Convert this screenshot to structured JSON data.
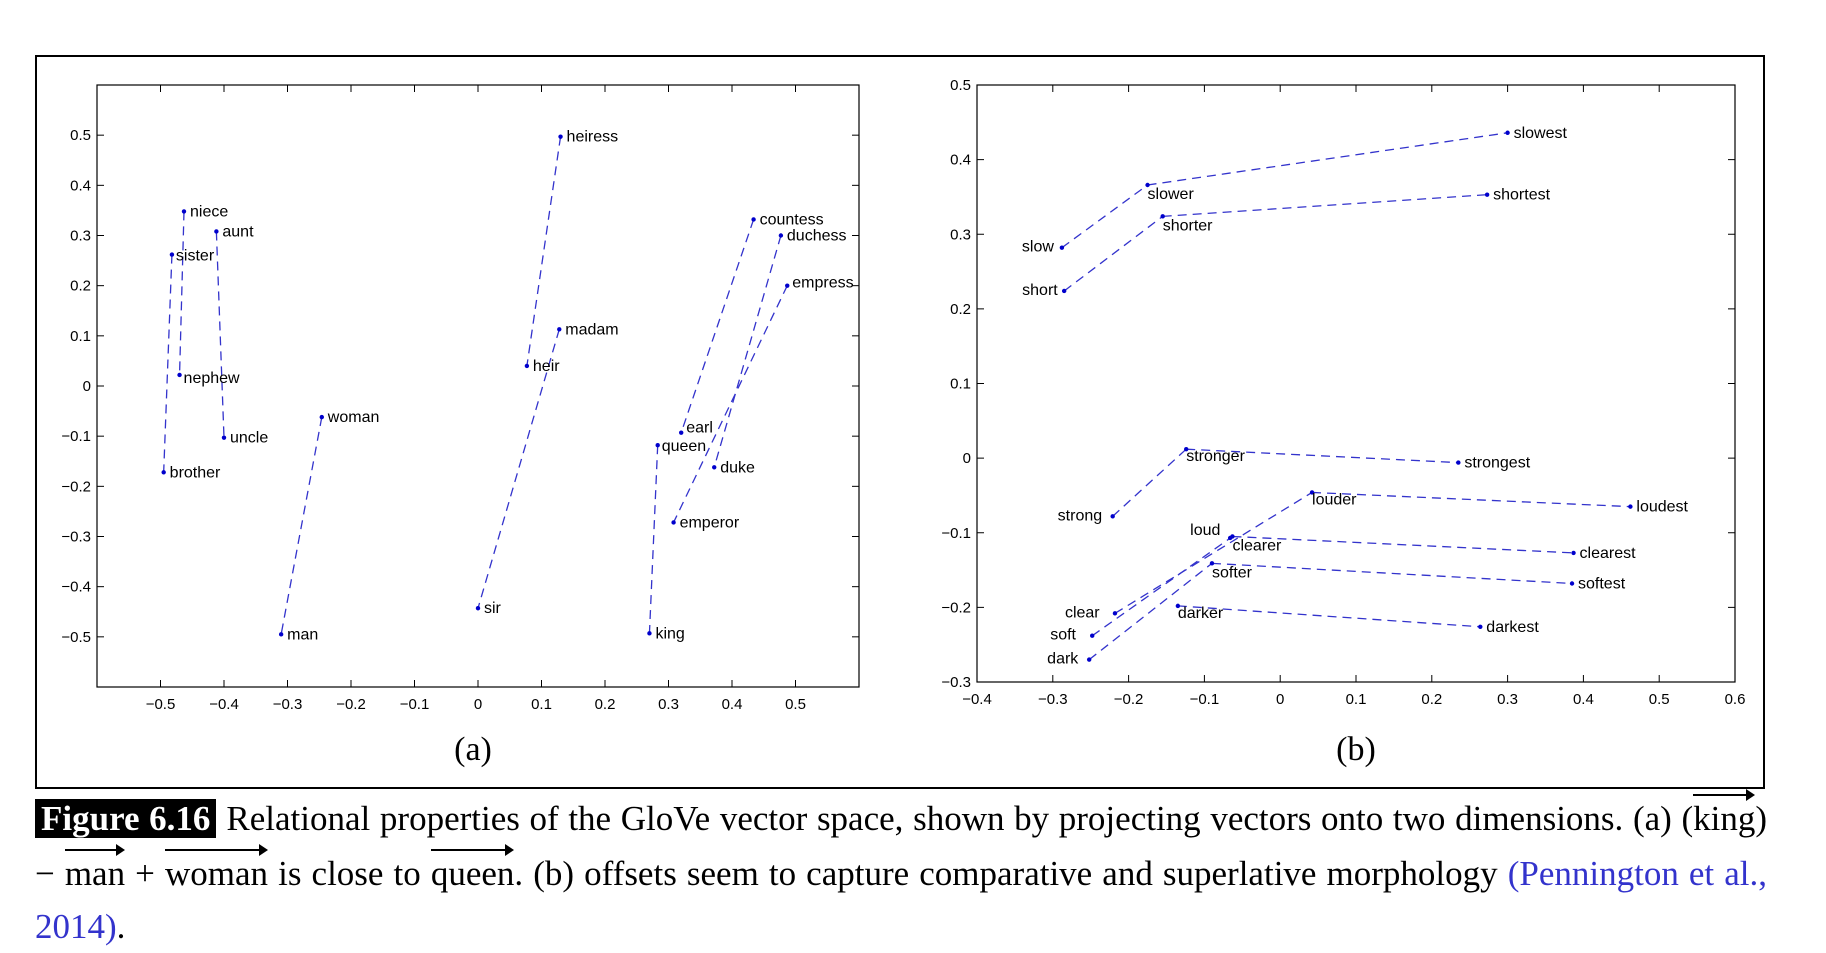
{
  "chart_data": [
    {
      "type": "scatter",
      "panel_label": "(a)",
      "xlim": [
        -0.6,
        0.6
      ],
      "ylim": [
        -0.6,
        0.6
      ],
      "xticks": [
        "−0.5",
        "−0.4",
        "−0.3",
        "−0.2",
        "−0.1",
        "0",
        "0.1",
        "0.2",
        "0.3",
        "0.4",
        "0.5"
      ],
      "xtick_values": [
        -0.5,
        -0.4,
        -0.3,
        -0.2,
        -0.1,
        0,
        0.1,
        0.2,
        0.3,
        0.4,
        0.5
      ],
      "yticks": [
        "0.5",
        "0.4",
        "0.3",
        "0.2",
        "0.1",
        "0",
        "−0.1",
        "−0.2",
        "−0.3",
        "−0.4",
        "−0.5"
      ],
      "ytick_values": [
        0.5,
        0.4,
        0.3,
        0.2,
        0.1,
        0,
        -0.1,
        -0.2,
        -0.3,
        -0.4,
        -0.5
      ],
      "points": [
        {
          "label": "niece",
          "x": -0.463,
          "y": 0.348
        },
        {
          "label": "aunt",
          "x": -0.412,
          "y": 0.308
        },
        {
          "label": "sister",
          "x": -0.482,
          "y": 0.262
        },
        {
          "label": "nephew",
          "x": -0.47,
          "y": 0.022
        },
        {
          "label": "uncle",
          "x": -0.4,
          "y": -0.103
        },
        {
          "label": "brother",
          "x": -0.495,
          "y": -0.172
        },
        {
          "label": "woman",
          "x": -0.246,
          "y": -0.062
        },
        {
          "label": "man",
          "x": -0.31,
          "y": -0.495
        },
        {
          "label": "heiress",
          "x": 0.13,
          "y": 0.497
        },
        {
          "label": "madam",
          "x": 0.128,
          "y": 0.113
        },
        {
          "label": "heir",
          "x": 0.077,
          "y": 0.04
        },
        {
          "label": "sir",
          "x": 0,
          "y": -0.443
        },
        {
          "label": "countess",
          "x": 0.434,
          "y": 0.332
        },
        {
          "label": "duchess",
          "x": 0.477,
          "y": 0.3
        },
        {
          "label": "empress",
          "x": 0.487,
          "y": 0.2
        },
        {
          "label": "earl",
          "x": 0.32,
          "y": -0.093
        },
        {
          "label": "queen",
          "x": 0.283,
          "y": -0.118
        },
        {
          "label": "duke",
          "x": 0.372,
          "y": -0.162
        },
        {
          "label": "emperor",
          "x": 0.308,
          "y": -0.272
        },
        {
          "label": "king",
          "x": 0.27,
          "y": -0.493
        }
      ],
      "links": [
        [
          "niece",
          "nephew"
        ],
        [
          "aunt",
          "uncle"
        ],
        [
          "sister",
          "brother"
        ],
        [
          "woman",
          "man"
        ],
        [
          "heiress",
          "heir"
        ],
        [
          "madam",
          "sir"
        ],
        [
          "countess",
          "earl"
        ],
        [
          "duchess",
          "duke"
        ],
        [
          "empress",
          "emperor"
        ],
        [
          "queen",
          "king"
        ]
      ]
    },
    {
      "type": "scatter",
      "panel_label": "(b)",
      "xlim": [
        -0.4,
        0.6
      ],
      "ylim": [
        -0.3,
        0.5
      ],
      "xticks": [
        "−0.4",
        "−0.3",
        "−0.2",
        "−0.1",
        "0",
        "0.1",
        "0.2",
        "0.3",
        "0.4",
        "0.5",
        "0.6"
      ],
      "xtick_values": [
        -0.4,
        -0.3,
        -0.2,
        -0.1,
        0,
        0.1,
        0.2,
        0.3,
        0.4,
        0.5,
        0.6
      ],
      "yticks": [
        "0.5",
        "0.4",
        "0.3",
        "0.2",
        "0.1",
        "0",
        "−0.1",
        "−0.2",
        "−0.3"
      ],
      "ytick_values": [
        0.5,
        0.4,
        0.3,
        0.2,
        0.1,
        0,
        -0.1,
        -0.2,
        -0.3
      ],
      "points": [
        {
          "label": "slow",
          "x": -0.288,
          "y": 0.282
        },
        {
          "label": "slower",
          "x": -0.175,
          "y": 0.366
        },
        {
          "label": "slowest",
          "x": 0.3,
          "y": 0.436
        },
        {
          "label": "short",
          "x": -0.285,
          "y": 0.224
        },
        {
          "label": "shorter",
          "x": -0.155,
          "y": 0.324
        },
        {
          "label": "shortest",
          "x": 0.273,
          "y": 0.353
        },
        {
          "label": "strong",
          "x": -0.221,
          "y": -0.078
        },
        {
          "label": "stronger",
          "x": -0.124,
          "y": 0.012
        },
        {
          "label": "strongest",
          "x": 0.235,
          "y": -0.006
        },
        {
          "label": "loud",
          "x": -0.066,
          "y": -0.107
        },
        {
          "label": "louder",
          "x": 0.042,
          "y": -0.046
        },
        {
          "label": "loudest",
          "x": 0.462,
          "y": -0.065
        },
        {
          "label": "clear",
          "x": -0.218,
          "y": -0.208
        },
        {
          "label": "clearer",
          "x": -0.063,
          "y": -0.105
        },
        {
          "label": "clearest",
          "x": 0.387,
          "y": -0.127
        },
        {
          "label": "soft",
          "x": -0.248,
          "y": -0.238
        },
        {
          "label": "softer",
          "x": -0.09,
          "y": -0.141
        },
        {
          "label": "softest",
          "x": 0.385,
          "y": -0.168
        },
        {
          "label": "dark",
          "x": -0.252,
          "y": -0.27
        },
        {
          "label": "darker",
          "x": -0.135,
          "y": -0.198
        },
        {
          "label": "darkest",
          "x": 0.264,
          "y": -0.226
        }
      ],
      "links": [
        [
          "slow",
          "slower"
        ],
        [
          "slower",
          "slowest"
        ],
        [
          "short",
          "shorter"
        ],
        [
          "shorter",
          "shortest"
        ],
        [
          "strong",
          "stronger"
        ],
        [
          "stronger",
          "strongest"
        ],
        [
          "clear",
          "louder"
        ],
        [
          "louder",
          "loudest"
        ],
        [
          "soft",
          "clearer"
        ],
        [
          "clearer",
          "clearest"
        ],
        [
          "dark",
          "softer"
        ],
        [
          "softer",
          "softest"
        ],
        [
          "darker",
          "darkest"
        ]
      ]
    }
  ],
  "caption": {
    "figure_label": "Figure 6.16",
    "text_1": "Relational properties of the GloVe vector space, shown by projecting vectors onto two dimensions. (a) (",
    "vec_king": "king",
    "text_2": ") − ",
    "vec_man": "man",
    "text_3": " + ",
    "vec_woman": "woman",
    "text_4": " is close to ",
    "vec_queen": "queen",
    "text_5": ". (b) offsets seem to capture comparative and superlative morphology ",
    "citation": "(Pennington et al., 2014)",
    "text_6": "."
  },
  "colors": {
    "points": "#0000cc",
    "links": "#3333cc",
    "axes": "#000000",
    "citation": "#3333cc"
  }
}
